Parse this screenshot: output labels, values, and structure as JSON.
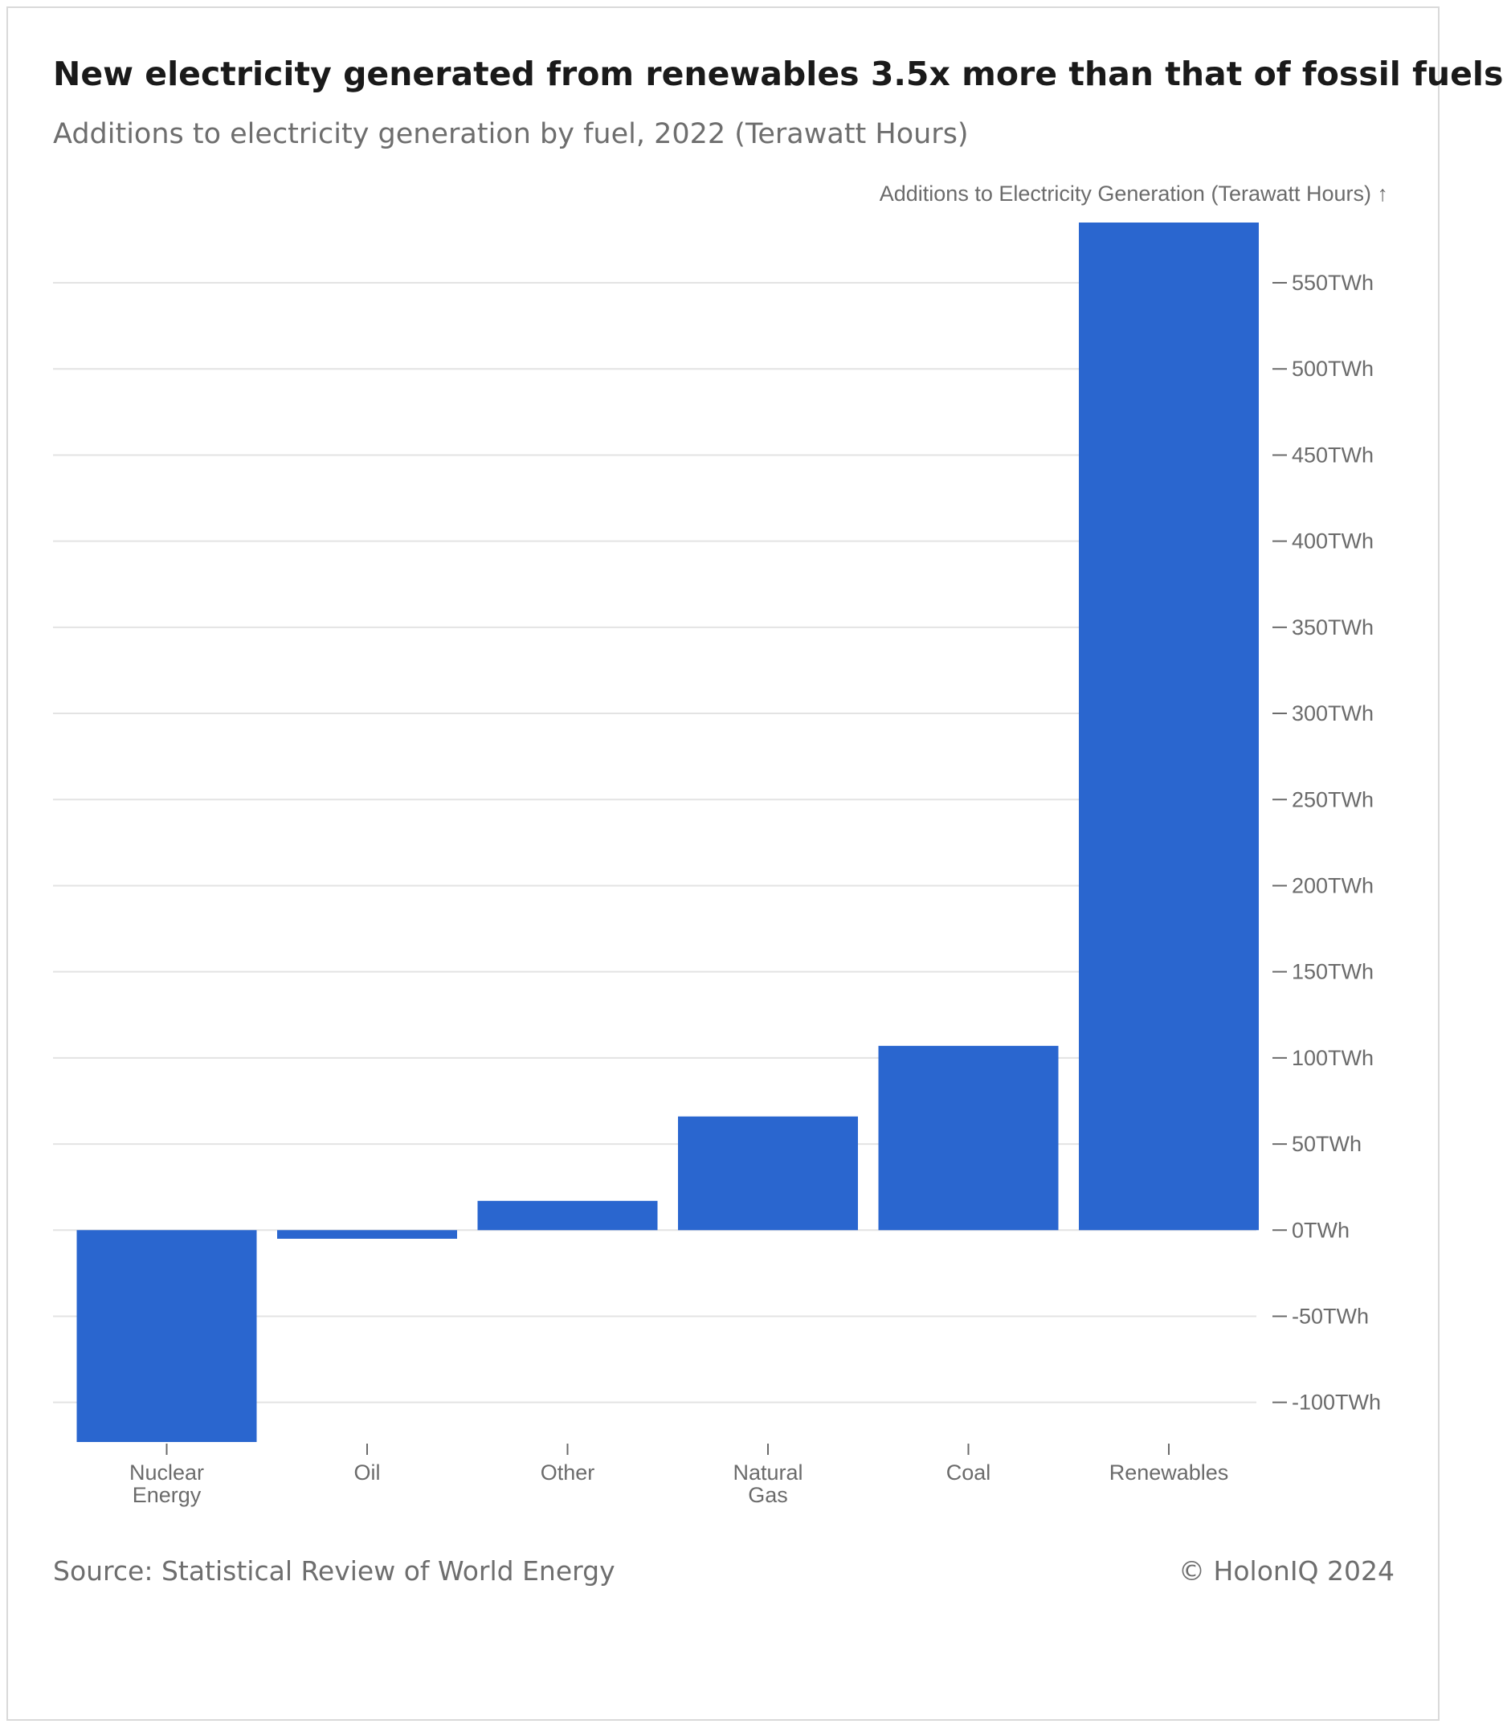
{
  "header": {
    "title": "New electricity generated from renewables 3.5x more than that of fossil fuels",
    "subtitle": "Additions to electricity generation by fuel, 2022 (Terawatt Hours)"
  },
  "footer": {
    "source": "Source: Statistical Review of World Energy",
    "copyright": "© HolonIQ 2024"
  },
  "colors": {
    "bar": "#2a66cf",
    "grid": "#e3e3e3",
    "axis_text": "#6b6b6b"
  },
  "chart_data": {
    "type": "bar",
    "title": "New electricity generated from renewables 3.5x more than that of fossil fuels",
    "subtitle": "Additions to electricity generation by fuel, 2022 (Terawatt Hours)",
    "ylabel": "Additions to Electricity Generation  (Terawatt Hours) ↑",
    "xlabel": "",
    "categories": [
      [
        "Nuclear",
        "Energy"
      ],
      [
        "Oil"
      ],
      [
        "Other"
      ],
      [
        "Natural",
        "Gas"
      ],
      [
        "Coal"
      ],
      [
        "Renewables"
      ]
    ],
    "values": [
      -123,
      -5,
      17,
      66,
      107,
      585
    ],
    "ylim": [
      -123,
      585
    ],
    "y_ticks": [
      -100,
      -50,
      0,
      50,
      100,
      150,
      200,
      250,
      300,
      350,
      400,
      450,
      500,
      550
    ],
    "y_tick_labels": [
      "-100TWh",
      "-50TWh",
      "0TWh",
      "50TWh",
      "100TWh",
      "150TWh",
      "200TWh",
      "250TWh",
      "300TWh",
      "350TWh",
      "400TWh",
      "450TWh",
      "500TWh",
      "550TWh"
    ],
    "y_axis_side": "right",
    "grid": true,
    "legend": false
  }
}
